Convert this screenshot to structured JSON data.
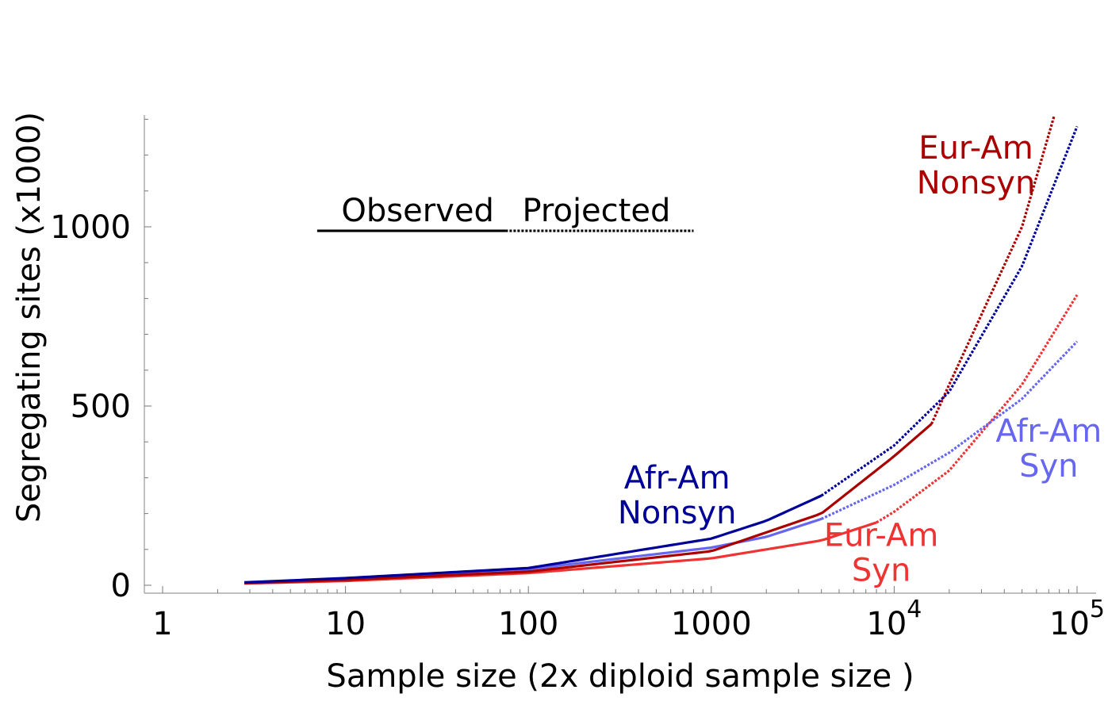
{
  "chart_data": {
    "type": "line",
    "title": "",
    "xlabel": "Sample  size  (2x diploid sample  size )",
    "ylabel": "Segregating  sites  (x1000)",
    "x_scale": "log",
    "xlim": [
      1,
      100000
    ],
    "ylim": [
      0,
      1300
    ],
    "x_ticks": [
      {
        "value": 1,
        "label": "1"
      },
      {
        "value": 10,
        "label": "10"
      },
      {
        "value": 100,
        "label": "100"
      },
      {
        "value": 1000,
        "label": "1000"
      },
      {
        "value": 10000,
        "label": "10",
        "exponent": "4"
      },
      {
        "value": 100000,
        "label": "10",
        "exponent": "5"
      }
    ],
    "y_ticks": [
      {
        "value": 0,
        "label": "0"
      },
      {
        "value": 500,
        "label": "500"
      },
      {
        "value": 1000,
        "label": "1000"
      }
    ],
    "y_minor_step": 100,
    "legend": {
      "observed_label": "Observed",
      "projected_label": "Projected",
      "x_observed": [
        7,
        75
      ],
      "x_projected": [
        75,
        800
      ],
      "y": 980
    },
    "series": [
      {
        "key": "afr_nonsyn",
        "color": "#000099",
        "label_lines": [
          "Afr-Am",
          "Nonsyn"
        ],
        "label_anchor": {
          "x": 650,
          "y": 270
        },
        "observed_until": 4000,
        "points": [
          [
            2.8,
            8
          ],
          [
            10,
            20
          ],
          [
            100,
            48
          ],
          [
            1000,
            130
          ],
          [
            2000,
            180
          ],
          [
            4000,
            250
          ],
          [
            10000,
            390
          ],
          [
            20000,
            540
          ],
          [
            50000,
            890
          ],
          [
            100000,
            1280
          ]
        ]
      },
      {
        "key": "afr_syn",
        "color": "#6666ee",
        "label_lines": [
          "Afr-Am",
          "Syn"
        ],
        "label_anchor": {
          "x": 70000,
          "y": 400
        },
        "observed_until": 4000,
        "points": [
          [
            2.8,
            7
          ],
          [
            10,
            18
          ],
          [
            100,
            45
          ],
          [
            1000,
            105
          ],
          [
            2000,
            135
          ],
          [
            4000,
            185
          ],
          [
            10000,
            280
          ],
          [
            20000,
            370
          ],
          [
            50000,
            520
          ],
          [
            100000,
            680
          ]
        ]
      },
      {
        "key": "eur_nonsyn",
        "color": "#aa0000",
        "label_lines": [
          "Eur-Am",
          "Nonsyn"
        ],
        "label_anchor": {
          "x": 28000,
          "y": 1190
        },
        "observed_until": 16000,
        "points": [
          [
            2.8,
            6
          ],
          [
            10,
            15
          ],
          [
            100,
            38
          ],
          [
            1000,
            95
          ],
          [
            4000,
            200
          ],
          [
            10000,
            360
          ],
          [
            16000,
            450
          ],
          [
            20000,
            560
          ],
          [
            50000,
            1000
          ],
          [
            75000,
            1310
          ]
        ]
      },
      {
        "key": "eur_syn",
        "color": "#ee3333",
        "label_lines": [
          "Eur-Am",
          "Syn"
        ],
        "label_anchor": {
          "x": 8500,
          "y": 110
        },
        "observed_until": 8000,
        "points": [
          [
            2.8,
            5
          ],
          [
            10,
            12
          ],
          [
            100,
            34
          ],
          [
            1000,
            75
          ],
          [
            4000,
            125
          ],
          [
            8000,
            175
          ],
          [
            10000,
            205
          ],
          [
            20000,
            320
          ],
          [
            50000,
            560
          ],
          [
            100000,
            810
          ]
        ]
      }
    ]
  }
}
